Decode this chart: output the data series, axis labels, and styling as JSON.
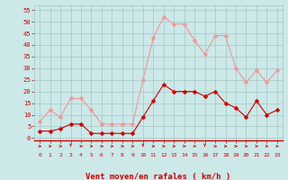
{
  "x": [
    0,
    1,
    2,
    3,
    4,
    5,
    6,
    7,
    8,
    9,
    10,
    11,
    12,
    13,
    14,
    15,
    16,
    17,
    18,
    19,
    20,
    21,
    22,
    23
  ],
  "wind_avg": [
    3,
    3,
    4,
    6,
    6,
    2,
    2,
    2,
    2,
    2,
    9,
    16,
    23,
    20,
    20,
    20,
    18,
    20,
    15,
    13,
    9,
    16,
    10,
    12
  ],
  "wind_gust": [
    7,
    12,
    9,
    17,
    17,
    12,
    6,
    6,
    6,
    6,
    25,
    43,
    52,
    49,
    49,
    42,
    36,
    44,
    44,
    30,
    24,
    29,
    24,
    29
  ],
  "ylabel_ticks": [
    0,
    5,
    10,
    15,
    20,
    25,
    30,
    35,
    40,
    45,
    50,
    55
  ],
  "xlim": [
    -0.5,
    23.5
  ],
  "ylim": [
    -1,
    57
  ],
  "xlabel": "Vent moyen/en rafales ( km/h )",
  "bg_color": "#cce8e8",
  "grid_color": "#aacccc",
  "line_avg_color": "#cc0000",
  "line_gust_color": "#ee9999",
  "marker_size": 2.5,
  "axis_label_color": "#cc0000",
  "tick_label_color": "#cc0000",
  "arrow_colors": [
    "right",
    "right",
    "right",
    "down-right",
    "right",
    "down-right",
    "right",
    "right",
    "right",
    "right",
    "down",
    "right",
    "right",
    "down-right",
    "right",
    "down-right",
    "down",
    "right",
    "right",
    "right",
    "right",
    "right",
    "down-right",
    "down-right"
  ]
}
